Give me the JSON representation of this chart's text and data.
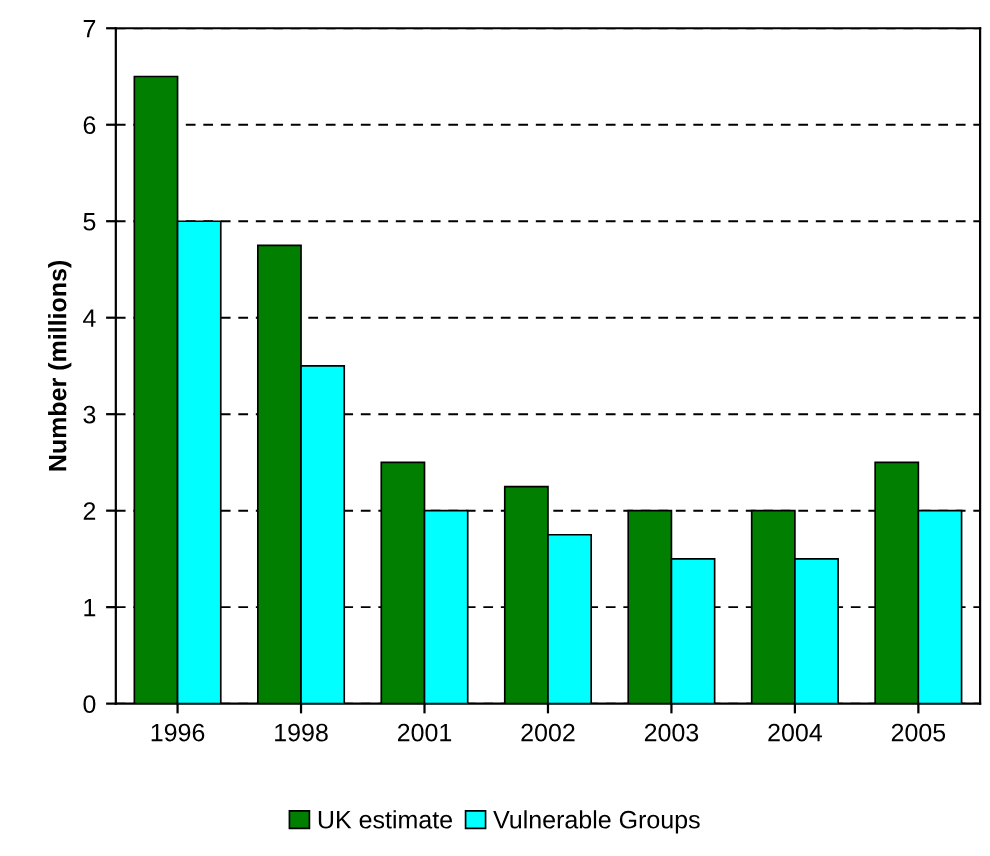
{
  "chart_data": {
    "type": "bar",
    "ylabel": "Number (millions)",
    "categories": [
      "1996",
      "1998",
      "2001",
      "2002",
      "2003",
      "2004",
      "2005"
    ],
    "series": [
      {
        "name": "UK estimate",
        "color": "#007f00",
        "values": [
          6.5,
          4.75,
          2.5,
          2.25,
          2.0,
          2.0,
          2.5
        ]
      },
      {
        "name": "Vulnerable Groups",
        "color": "#00ffff",
        "values": [
          5,
          3.5,
          2,
          1.75,
          1.5,
          1.5,
          2
        ]
      }
    ],
    "ylim": [
      0,
      7
    ],
    "yticks": [
      0,
      1,
      2,
      3,
      4,
      5,
      6,
      7
    ],
    "grid": "y",
    "legend": "bottom"
  }
}
